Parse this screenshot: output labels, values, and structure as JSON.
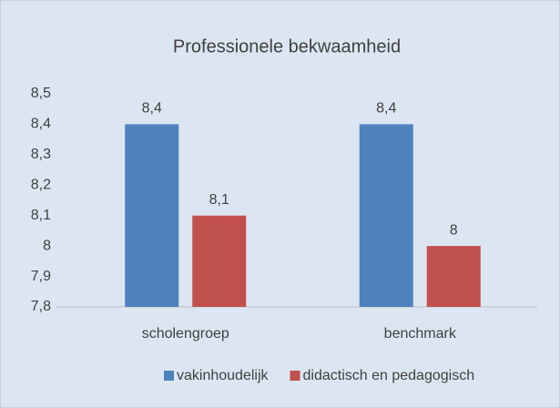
{
  "chart_data": {
    "type": "bar",
    "title": "Professionele bekwaamheid",
    "categories": [
      "scholengroep",
      "benchmark"
    ],
    "series": [
      {
        "name": "vakinhoudelijk",
        "color": "#4f81bd",
        "values": [
          8.4,
          8.4
        ],
        "value_labels": [
          "8,4",
          "8,4"
        ]
      },
      {
        "name": "didactisch en pedagogisch",
        "color": "#c0504d",
        "values": [
          8.1,
          8
        ],
        "value_labels": [
          "8,1",
          "8"
        ]
      }
    ],
    "ylim": [
      7.8,
      8.5
    ],
    "yticks": [
      {
        "value": 7.8,
        "label": "7,8"
      },
      {
        "value": 7.9,
        "label": "7,9"
      },
      8,
      {
        "value": 8.1,
        "label": "8,1"
      },
      {
        "value": 8.2,
        "label": "8,2"
      },
      {
        "value": 8.3,
        "label": "8,3"
      },
      {
        "value": 8.4,
        "label": "8,4"
      },
      {
        "value": 8.5,
        "label": "8,5"
      }
    ],
    "grid": false,
    "legend": "bottom"
  }
}
